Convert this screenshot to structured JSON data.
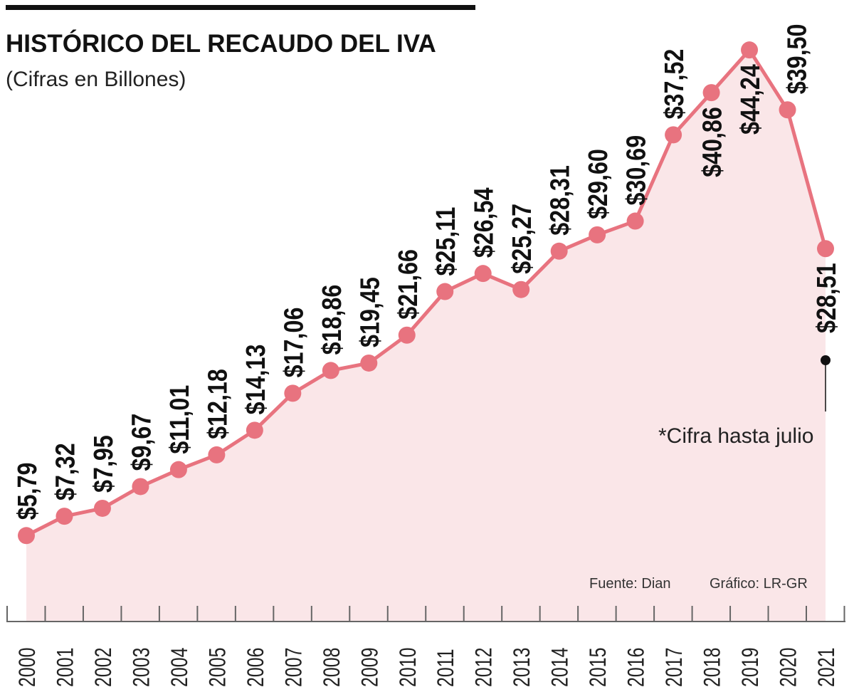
{
  "chart_data": {
    "type": "area",
    "title": "HISTÓRICO DEL RECAUDO DEL IVA",
    "subtitle": "(Cifras en Billones)",
    "xlabel": "",
    "ylabel": "",
    "categories": [
      "2000",
      "2001",
      "2002",
      "2003",
      "2004",
      "2005",
      "2006",
      "2007",
      "2008",
      "2009",
      "2010",
      "2011",
      "2012",
      "2013",
      "2014",
      "2015",
      "2016",
      "2017",
      "2018",
      "2019",
      "2020",
      "2021"
    ],
    "values": [
      5.79,
      7.32,
      7.95,
      9.67,
      11.01,
      12.18,
      14.13,
      17.06,
      18.86,
      19.45,
      21.66,
      25.11,
      26.54,
      25.27,
      28.31,
      29.6,
      30.69,
      37.52,
      40.86,
      44.24,
      39.5,
      28.51
    ],
    "labels": [
      "$5,79",
      "$7,32",
      "$7,95",
      "$9,67",
      "$11,01",
      "$12,18",
      "$14,13",
      "$17,06",
      "$18,86",
      "$19,45",
      "$21,66",
      "$25,11",
      "$26,54",
      "$25,27",
      "$28,31",
      "$29,60",
      "$30,69",
      "$37,52",
      "$40,86",
      "$44,24",
      "$39,50",
      "$28,51"
    ],
    "ylim": [
      0,
      48
    ],
    "grid": false,
    "colors": {
      "line": "#e8737f",
      "fill": "#fae6e8",
      "axis": "#666666"
    },
    "annotation": "*Cifra hasta julio",
    "source": "Fuente: Dian",
    "credit": "Gráfico: LR-GR"
  }
}
